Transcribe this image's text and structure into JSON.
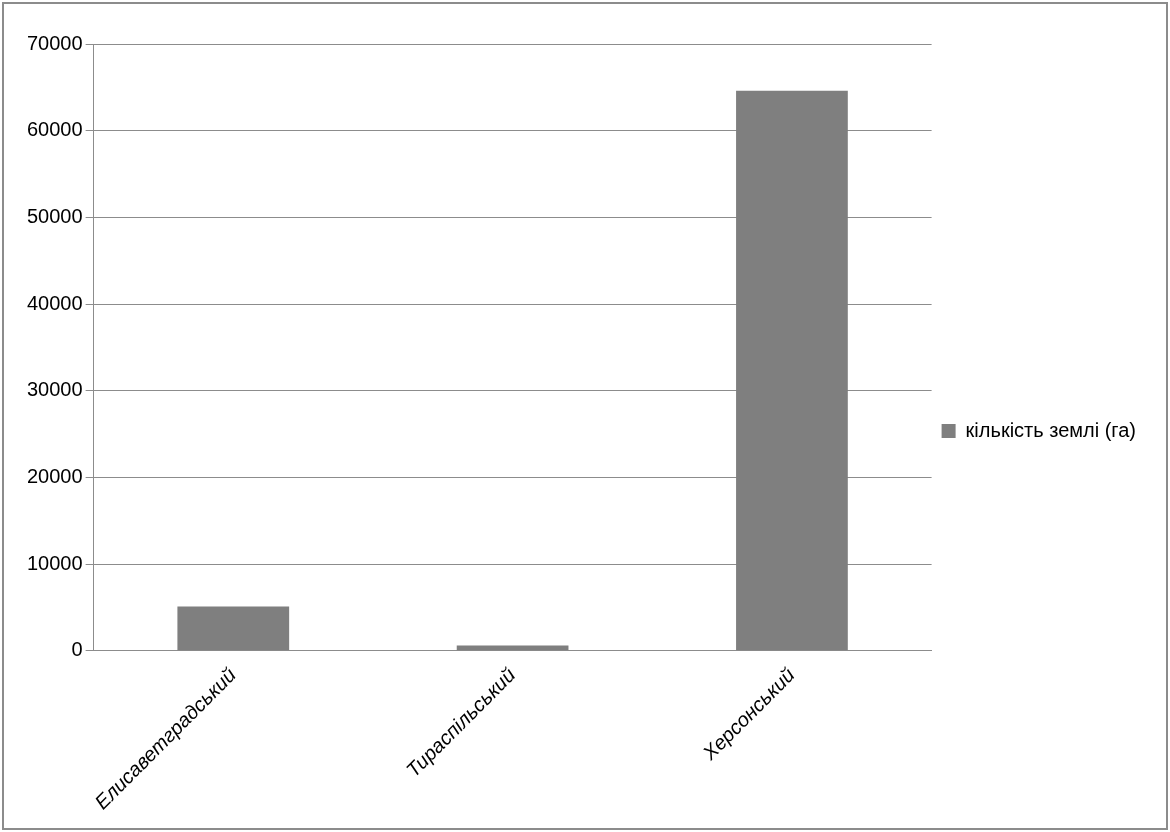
{
  "chart_data": {
    "type": "bar",
    "categories": [
      "Елисаветградський",
      "Тираспільський",
      "Херсонський"
    ],
    "series": [
      {
        "name": "кількість землі (га)",
        "color": "#7f7f7f",
        "values": [
          5100,
          600,
          64600
        ]
      }
    ],
    "ylim": [
      0,
      70000
    ],
    "yticks": [
      0,
      10000,
      20000,
      30000,
      40000,
      50000,
      60000,
      70000
    ],
    "grid": "y",
    "legend": "right"
  }
}
